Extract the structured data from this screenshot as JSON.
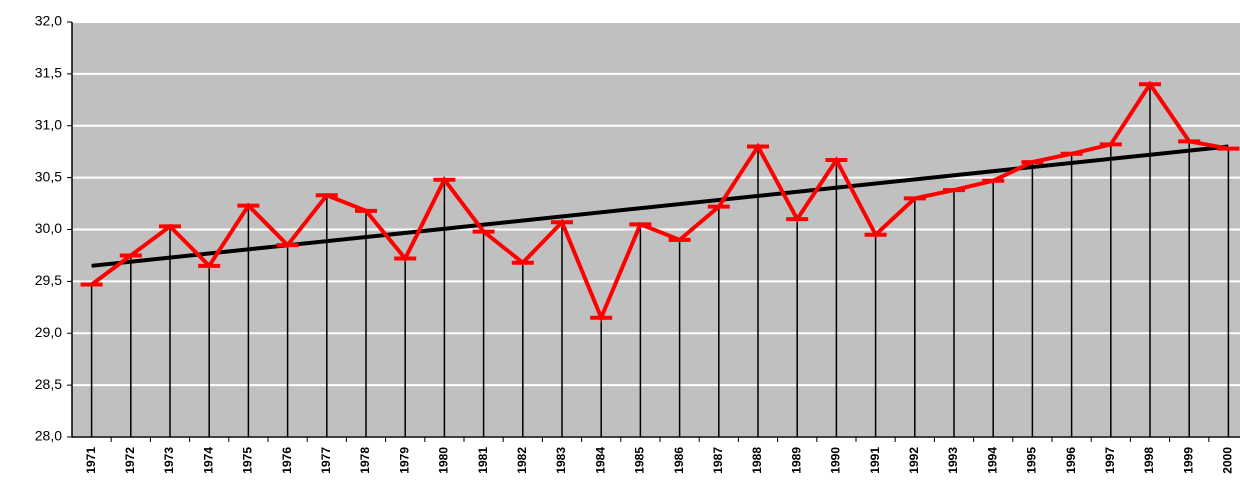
{
  "chart_data": {
    "type": "line",
    "categories": [
      "1971",
      "1972",
      "1973",
      "1974",
      "1975",
      "1976",
      "1977",
      "1978",
      "1979",
      "1980",
      "1981",
      "1982",
      "1983",
      "1984",
      "1985",
      "1986",
      "1987",
      "1988",
      "1989",
      "1990",
      "1991",
      "1992",
      "1993",
      "1994",
      "1995",
      "1996",
      "1997",
      "1998",
      "1999",
      "2000"
    ],
    "values": [
      29.47,
      29.75,
      30.03,
      29.65,
      30.23,
      29.85,
      30.33,
      30.18,
      29.72,
      30.48,
      29.98,
      29.68,
      30.07,
      29.15,
      30.05,
      29.9,
      30.22,
      30.8,
      30.1,
      30.67,
      29.95,
      30.3,
      30.38,
      30.47,
      30.65,
      30.73,
      30.82,
      31.4,
      30.85,
      30.78
    ],
    "color": "#ff0000",
    "trend_line": {
      "start": 29.65,
      "end": 30.8,
      "color": "#000000"
    },
    "ylim": [
      28,
      32
    ],
    "yticks": [
      {
        "value": 28,
        "label": "28,0"
      },
      {
        "value": 28.5,
        "label": "28,5"
      },
      {
        "value": 29,
        "label": "29,0"
      },
      {
        "value": 29.5,
        "label": "29,5"
      },
      {
        "value": 30,
        "label": "30,0"
      },
      {
        "value": 30.5,
        "label": "30,5"
      },
      {
        "value": 31,
        "label": "31,0"
      },
      {
        "value": 31.5,
        "label": "31,5"
      },
      {
        "value": 32,
        "label": "32,0"
      }
    ],
    "grid": true
  }
}
